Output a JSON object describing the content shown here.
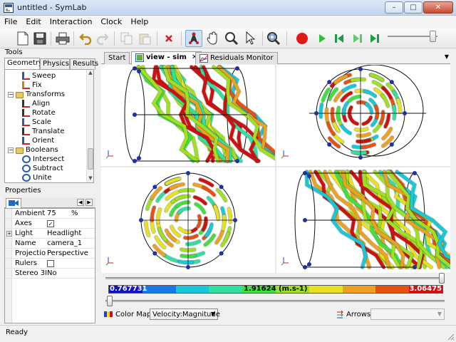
{
  "window": {
    "title": "untitled - SymLab",
    "minimize_glyph": "–",
    "maximize_glyph": "□",
    "close_glyph": "✕"
  },
  "menu": [
    "File",
    "Edit",
    "Interaction",
    "Clock",
    "Help"
  ],
  "toolbar": {
    "icons": [
      "new-file-icon",
      "save-icon",
      "print-icon",
      "undo-icon",
      "redo-icon",
      "copy-icon",
      "paste-icon",
      "delete-icon",
      "select-vertex-icon",
      "pan-hand-icon",
      "zoom-icon",
      "pointer-icon",
      "zoom-fit-icon",
      "record-icon",
      "play-icon",
      "skip-start-icon",
      "skip-end-icon",
      "step-forward-icon"
    ],
    "time_slider_fraction": 0.9
  },
  "tools": {
    "header": "Tools",
    "tabs": [
      "Geometry",
      "Physics",
      "Results"
    ],
    "active_tab": "Geometry",
    "tree": [
      {
        "label": "Sweep",
        "level": 2,
        "icon": "sweep-icon"
      },
      {
        "label": "Fix",
        "level": 2,
        "icon": "fix-icon"
      },
      {
        "label": "Transforms",
        "level": 1,
        "icon": "folder-icon",
        "expand": "−"
      },
      {
        "label": "Align",
        "level": 2,
        "icon": "align-icon"
      },
      {
        "label": "Rotate",
        "level": 2,
        "icon": "rotate-icon"
      },
      {
        "label": "Scale",
        "level": 2,
        "icon": "scale-icon"
      },
      {
        "label": "Translate",
        "level": 2,
        "icon": "translate-icon"
      },
      {
        "label": "Orient",
        "level": 2,
        "icon": "orient-icon"
      },
      {
        "label": "Booleans",
        "level": 1,
        "icon": "folder-icon",
        "expand": "−"
      },
      {
        "label": "Intersect",
        "level": 2,
        "icon": "intersect-icon"
      },
      {
        "label": "Subtract",
        "level": 2,
        "icon": "subtract-icon"
      },
      {
        "label": "Unite",
        "level": 2,
        "icon": "unite-icon"
      }
    ]
  },
  "properties": {
    "header": "Properties",
    "rows": [
      {
        "name": "Ambient",
        "value": "75",
        "unit": "%"
      },
      {
        "name": "Axes",
        "checkbox": true,
        "checked": true
      },
      {
        "name": "Light",
        "value": "Headlight",
        "expandable": true
      },
      {
        "name": "Name",
        "value": "camera_1"
      },
      {
        "name": "Projection",
        "value": "Perspective"
      },
      {
        "name": "Rulers",
        "checkbox": true,
        "checked": false
      },
      {
        "name": "Stereo 3D",
        "value": "No"
      }
    ]
  },
  "main_tabs": [
    {
      "label": "Start",
      "active": false
    },
    {
      "label": "view - sim",
      "active": true,
      "closable": true
    },
    {
      "label": "Residuals Monitor",
      "active": false
    }
  ],
  "colorbar": {
    "min_label": "0.767731",
    "mid_label": "1.91624 (m.s-1)",
    "max_label": "3.06475",
    "colors": [
      "#1010c0",
      "#1878e8",
      "#18c8d8",
      "#30e0a0",
      "#40e040",
      "#a0e020",
      "#e8e020",
      "#f0a020",
      "#e85010",
      "#d01010"
    ]
  },
  "bottom": {
    "colormap_label": "Color Map:",
    "colormap_value": "Velocity:Magnitude",
    "arrows_label": "Arrows:",
    "arrows_value": ""
  },
  "status": "Ready"
}
